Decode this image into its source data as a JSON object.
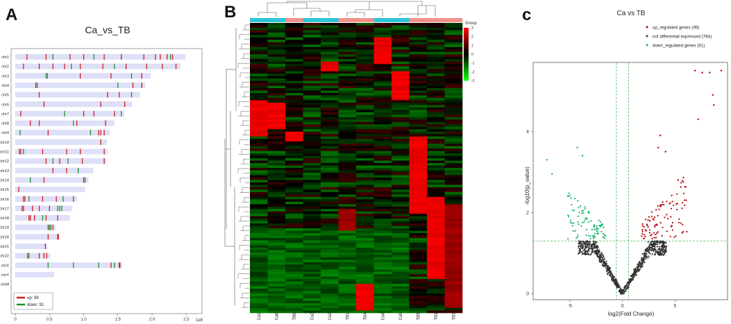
{
  "panels": {
    "a": "A",
    "b": "B",
    "c": "c"
  },
  "colors": {
    "up": "#d61a1a",
    "down": "#1f8f2a",
    "band": "#dde0f7",
    "ns": "#333333",
    "volcano_up": "#b00000",
    "volcano_down": "#19b36b",
    "group_ca": "#2ec4d6",
    "group_tb": "#f0918a",
    "threshold": "#4caf50"
  },
  "chart_data": [
    {
      "type": "ideogram",
      "title": "Ca_vs_TB",
      "chromosomes": [
        {
          "name": "chr1",
          "length": 2.49,
          "up": [
            0.17,
            0.45,
            0.8,
            1.0,
            1.3,
            1.55,
            1.88,
            2.05,
            2.12,
            2.22,
            2.3
          ],
          "down": [
            0.55,
            1.15,
            2.27
          ]
        },
        {
          "name": "chr2",
          "length": 2.42,
          "up": [
            0.12,
            0.35,
            0.55,
            0.72,
            0.95,
            1.28,
            1.62,
            1.92,
            2.15,
            2.35
          ],
          "down": [
            0.82,
            1.45
          ]
        },
        {
          "name": "chr3",
          "length": 1.98,
          "up": [
            0.95,
            1.4,
            1.85
          ],
          "down": [
            0.45,
            0.47,
            1.7
          ]
        },
        {
          "name": "chr4",
          "length": 1.9,
          "up": [
            0.3,
            1.72,
            1.85
          ],
          "down": [
            0.32,
            1.5
          ]
        },
        {
          "name": "chr5",
          "length": 1.82,
          "up": [
            0.35,
            1.35,
            1.52
          ],
          "down": [
            1.7
          ]
        },
        {
          "name": "chr6",
          "length": 1.71,
          "up": [
            0.42,
            1.25,
            1.6
          ],
          "down": []
        },
        {
          "name": "chr7",
          "length": 1.59,
          "up": [
            0.08,
            1.0,
            1.15,
            1.45
          ],
          "down": [
            0.72,
            1.55
          ]
        },
        {
          "name": "chr8",
          "length": 1.45,
          "up": [
            0.22,
            0.35,
            0.9,
            1.32
          ],
          "down": [
            0.85
          ]
        },
        {
          "name": "chr9",
          "length": 1.38,
          "up": [
            0.48,
            1.22,
            1.25,
            1.3
          ],
          "down": [
            0.07,
            1.1
          ]
        },
        {
          "name": "chr10",
          "length": 1.34,
          "up": [
            1.25
          ],
          "down": []
        },
        {
          "name": "chr11",
          "length": 1.35,
          "up": [
            0.06,
            0.08,
            0.4,
            0.75,
            0.95,
            1.3
          ],
          "down": [
            0.12
          ]
        },
        {
          "name": "chr12",
          "length": 1.33,
          "up": [
            0.45,
            0.65,
            0.98,
            1.3
          ],
          "down": [
            0.55,
            0.77
          ]
        },
        {
          "name": "chr13",
          "length": 1.14,
          "up": [
            0.55,
            0.75
          ],
          "down": [
            0.92
          ]
        },
        {
          "name": "chr14",
          "length": 1.07,
          "up": [
            0.42,
            1.0
          ],
          "down": [
            0.22,
            1.02
          ]
        },
        {
          "name": "chr15",
          "length": 1.02,
          "up": [
            0.05
          ],
          "down": []
        },
        {
          "name": "chr16",
          "length": 0.9,
          "up": [
            0.12,
            0.14,
            0.4,
            0.6,
            0.85
          ],
          "down": [
            0.2,
            0.7
          ]
        },
        {
          "name": "chr17",
          "length": 0.83,
          "up": [
            0.1,
            0.12,
            0.25,
            0.35,
            0.5
          ],
          "down": [
            0.62,
            0.65,
            0.68
          ]
        },
        {
          "name": "chr18",
          "length": 0.8,
          "up": [
            0.2,
            0.22,
            0.28,
            0.45,
            0.62
          ],
          "down": [
            0.4
          ]
        },
        {
          "name": "chr19",
          "length": 0.59,
          "up": [
            0.5,
            0.55
          ],
          "down": [
            0.48,
            0.52
          ]
        },
        {
          "name": "chr20",
          "length": 0.64,
          "up": [
            0.48,
            0.62,
            0.63
          ],
          "down": []
        },
        {
          "name": "chr21",
          "length": 0.47,
          "up": [
            0.44
          ],
          "down": []
        },
        {
          "name": "chr22",
          "length": 0.51,
          "up": [
            0.18,
            0.35,
            0.42,
            0.46
          ],
          "down": [
            0.2
          ]
        },
        {
          "name": "chrX",
          "length": 1.56,
          "up": [
            1.4,
            1.52,
            1.53
          ],
          "down": [
            0.48,
            0.85,
            1.22,
            1.45
          ]
        },
        {
          "name": "chrY",
          "length": 0.57,
          "up": [],
          "down": []
        },
        {
          "name": "chrM",
          "length": 0.0,
          "up": [],
          "down": []
        }
      ],
      "x_ticks": [
        "0",
        "0.5",
        "1.0",
        "1.5",
        "2.0",
        "2.5"
      ],
      "x_tick_values": [
        0,
        0.5,
        1.0,
        1.5,
        2.0,
        2.5
      ],
      "x_multiplier": "1e8",
      "xlim": [
        0,
        2.6
      ],
      "legend": [
        "up: 99",
        "down: 91"
      ],
      "legend_position": "bottom-left"
    },
    {
      "type": "heatmap",
      "columns": [
        "Ca1",
        "Ca6",
        "TB6",
        "Ca2",
        "Ca3",
        "TB1",
        "TB4",
        "Ca4",
        "Ca5",
        "TB5",
        "TB2",
        "TB3"
      ],
      "groups": [
        "Ca",
        "Ca",
        "TB",
        "Ca",
        "Ca",
        "TB",
        "TB",
        "Ca",
        "Ca",
        "TB",
        "TB",
        "TB"
      ],
      "legend_title": "Group",
      "color_scale_ticks": [
        "3",
        "2",
        "1",
        "0",
        "-1",
        "-2",
        "-3"
      ],
      "color_scale_values": [
        3,
        2,
        1,
        0,
        -1,
        -2,
        -3
      ],
      "blocks": [
        {
          "col": 7,
          "row_from": 0.05,
          "row_to": 0.14,
          "value": 3
        },
        {
          "col": 8,
          "row_from": 0.16,
          "row_to": 0.26,
          "value": 3
        },
        {
          "col": 4,
          "row_from": 0.13,
          "row_to": 0.16,
          "value": 3
        },
        {
          "col": 0,
          "row_from": 0.26,
          "row_to": 0.39,
          "value": 3
        },
        {
          "col": 1,
          "row_from": 0.27,
          "row_to": 0.36,
          "value": 3
        },
        {
          "col": 2,
          "row_from": 0.37,
          "row_to": 0.4,
          "value": 3
        },
        {
          "col": 9,
          "row_from": 0.39,
          "row_to": 0.65,
          "value": 3
        },
        {
          "col": 10,
          "row_from": 0.6,
          "row_to": 0.88,
          "value": 3
        },
        {
          "col": 11,
          "row_from": 0.62,
          "row_to": 0.98,
          "value": 2
        },
        {
          "col": 5,
          "row_from": 0.64,
          "row_to": 0.71,
          "value": 2
        },
        {
          "col": 6,
          "row_from": 0.9,
          "row_to": 0.99,
          "value": 3
        }
      ]
    },
    {
      "type": "scatter",
      "title": "Ca vs TB",
      "xlabel": "log2(Fold Change)",
      "ylabel": "-log10(p_value)",
      "xlim": [
        -8.5,
        10
      ],
      "ylim": [
        -0.15,
        5.7
      ],
      "x_ticks": [
        "-5",
        "0",
        "5"
      ],
      "x_tick_values": [
        -5,
        0,
        5
      ],
      "y_ticks": [
        "0",
        "2",
        "4"
      ],
      "y_tick_values": [
        0,
        2,
        4
      ],
      "thresholds": {
        "x": [
          -0.58,
          0.58
        ],
        "y": 1.3
      },
      "series": [
        {
          "name": "up_regulated genes (99)",
          "count": 99
        },
        {
          "name": "not differential expressed (784)",
          "count": 784
        },
        {
          "name": "down_regulated genes (91)",
          "count": 91
        }
      ],
      "highlight_points": [
        [
          6.9,
          5.5
        ],
        [
          9.4,
          5.5
        ],
        [
          7.6,
          5.45
        ],
        [
          8.3,
          5.45
        ],
        [
          8.6,
          4.9
        ],
        [
          8.7,
          4.65
        ],
        [
          7.2,
          4.3
        ],
        [
          3.6,
          3.9
        ],
        [
          3.4,
          3.6
        ],
        [
          4.1,
          3.5
        ],
        [
          5.3,
          2.8
        ],
        [
          -7.2,
          3.3
        ],
        [
          -6.7,
          2.95
        ],
        [
          -4.3,
          3.6
        ],
        [
          -3.8,
          3.4
        ],
        [
          -5.2,
          2.4
        ]
      ],
      "legend_position": "top-right"
    }
  ]
}
